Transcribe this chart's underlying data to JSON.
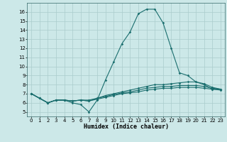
{
  "xlabel": "Humidex (Indice chaleur)",
  "ylabel": "",
  "bg_color": "#cce8e8",
  "grid_color": "#aacccc",
  "line_color": "#1a6e6e",
  "xlim": [
    -0.5,
    23.5
  ],
  "ylim": [
    4.5,
    17.0
  ],
  "yticks": [
    5,
    6,
    7,
    8,
    9,
    10,
    11,
    12,
    13,
    14,
    15,
    16
  ],
  "xticks": [
    0,
    1,
    2,
    3,
    4,
    5,
    6,
    7,
    8,
    9,
    10,
    11,
    12,
    13,
    14,
    15,
    16,
    17,
    18,
    19,
    20,
    21,
    22,
    23
  ],
  "lines": [
    {
      "x": [
        0,
        1,
        2,
        3,
        4,
        5,
        6,
        7,
        8,
        9,
        10,
        11,
        12,
        13,
        14,
        15,
        16,
        17,
        18,
        19,
        20,
        21,
        22,
        23
      ],
      "y": [
        7,
        6.5,
        6.0,
        6.3,
        6.3,
        6.0,
        5.8,
        5.0,
        6.3,
        8.5,
        10.5,
        12.5,
        13.8,
        15.8,
        16.3,
        16.3,
        14.8,
        12.0,
        9.3,
        9.0,
        8.3,
        8.0,
        7.5,
        7.5
      ]
    },
    {
      "x": [
        0,
        1,
        2,
        3,
        4,
        5,
        6,
        7,
        8,
        9,
        10,
        11,
        12,
        13,
        14,
        15,
        16,
        17,
        18,
        19,
        20,
        21,
        22,
        23
      ],
      "y": [
        7,
        6.5,
        6.0,
        6.3,
        6.3,
        6.2,
        6.3,
        6.3,
        6.5,
        6.8,
        7.0,
        7.2,
        7.4,
        7.6,
        7.8,
        8.0,
        8.0,
        8.1,
        8.2,
        8.3,
        8.3,
        8.1,
        7.7,
        7.5
      ]
    },
    {
      "x": [
        0,
        1,
        2,
        3,
        4,
        5,
        6,
        7,
        8,
        9,
        10,
        11,
        12,
        13,
        14,
        15,
        16,
        17,
        18,
        19,
        20,
        21,
        22,
        23
      ],
      "y": [
        7,
        6.5,
        6.0,
        6.3,
        6.3,
        6.2,
        6.3,
        6.2,
        6.5,
        6.7,
        6.9,
        7.1,
        7.2,
        7.4,
        7.6,
        7.7,
        7.8,
        7.8,
        7.9,
        7.9,
        7.9,
        7.8,
        7.6,
        7.5
      ]
    },
    {
      "x": [
        0,
        1,
        2,
        3,
        4,
        5,
        6,
        7,
        8,
        9,
        10,
        11,
        12,
        13,
        14,
        15,
        16,
        17,
        18,
        19,
        20,
        21,
        22,
        23
      ],
      "y": [
        7,
        6.5,
        6.0,
        6.3,
        6.3,
        6.2,
        6.3,
        6.2,
        6.4,
        6.6,
        6.8,
        7.0,
        7.1,
        7.2,
        7.4,
        7.5,
        7.6,
        7.6,
        7.7,
        7.7,
        7.7,
        7.6,
        7.5,
        7.4
      ]
    }
  ],
  "tick_fontsize": 5.0,
  "xlabel_fontsize": 6.0,
  "marker_size": 1.8,
  "line_width": 0.8
}
